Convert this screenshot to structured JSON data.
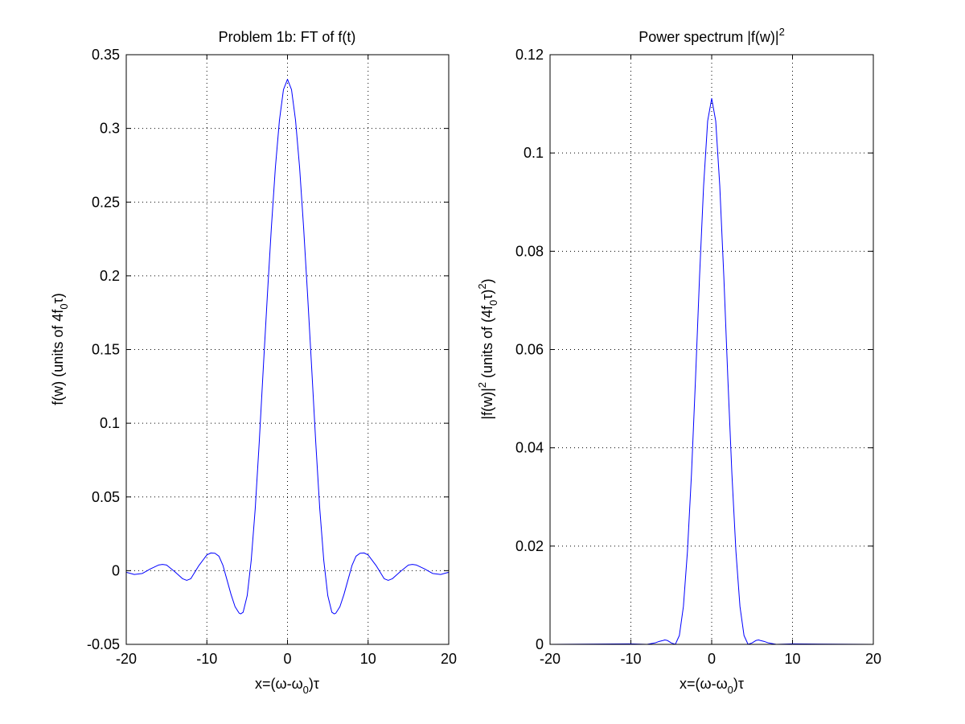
{
  "chart_data": [
    {
      "type": "line",
      "title": "Problem 1b: FT of f(t)",
      "xlabel": "x=(ω-ω0)τ",
      "ylabel": "f(w) (units of 4f0τ)",
      "xlim": [
        -20,
        20
      ],
      "ylim": [
        -0.05,
        0.35
      ],
      "xticks": [
        -20,
        -10,
        0,
        10,
        20
      ],
      "yticks": [
        -0.05,
        0,
        0.05,
        0.1,
        0.15,
        0.2,
        0.25,
        0.3,
        0.35
      ],
      "xtick_labels": [
        "-20",
        "-10",
        "0",
        "10",
        "20"
      ],
      "ytick_labels": [
        "-0.05",
        "0",
        "0.05",
        "0.1",
        "0.15",
        "0.2",
        "0.25",
        "0.3",
        "0.35"
      ],
      "grid": true,
      "series": [
        {
          "color": "#0000ff",
          "x": [
            -20,
            -19,
            -18,
            -17,
            -16,
            -15.5,
            -15,
            -14,
            -13,
            -12.5,
            -12,
            -11,
            -10,
            -9.5,
            -9,
            -8.5,
            -8,
            -7,
            -6.5,
            -6,
            -5.8,
            -5.5,
            -5,
            -4.5,
            -4,
            -3.5,
            -3,
            -2.5,
            -2,
            -1.5,
            -1,
            -0.5,
            0,
            0.5,
            1,
            1.5,
            2,
            2.5,
            3,
            3.5,
            4,
            4.5,
            5,
            5.5,
            5.8,
            6,
            6.5,
            7,
            8,
            8.5,
            9,
            9.5,
            10,
            11,
            12,
            12.5,
            13,
            14,
            15,
            15.5,
            16,
            17,
            18,
            19,
            20
          ],
          "y": [
            -0.0011,
            -0.0026,
            -0.0019,
            0.0012,
            0.0038,
            0.0042,
            0.0038,
            -0.0006,
            -0.0055,
            -0.0066,
            -0.0055,
            0.0034,
            0.0107,
            0.012,
            0.0118,
            0.0098,
            0.0035,
            -0.0162,
            -0.0245,
            -0.0288,
            -0.0293,
            -0.0282,
            -0.017,
            0.007,
            0.0422,
            0.0875,
            0.1376,
            0.1864,
            0.2327,
            0.2736,
            0.3055,
            0.3263,
            0.3333,
            0.3263,
            0.3055,
            0.2736,
            0.2327,
            0.1864,
            0.1376,
            0.0875,
            0.0422,
            0.007,
            -0.017,
            -0.0282,
            -0.0293,
            -0.0288,
            -0.0245,
            -0.0162,
            0.0035,
            0.0098,
            0.0118,
            0.012,
            0.0107,
            0.0034,
            -0.0055,
            -0.0066,
            -0.0055,
            -0.0006,
            0.0038,
            0.0042,
            0.0038,
            0.0012,
            -0.0019,
            -0.0026,
            -0.0011
          ]
        }
      ]
    },
    {
      "type": "line",
      "title": "Power spectrum |f(w)|2",
      "xlabel": "x=(ω-ω0)τ",
      "ylabel": "|f(w)|2 (units of (4f0τ)2)",
      "xlim": [
        -20,
        20
      ],
      "ylim": [
        0,
        0.12
      ],
      "xticks": [
        -20,
        -10,
        0,
        10,
        20
      ],
      "yticks": [
        0,
        0.02,
        0.04,
        0.06,
        0.08,
        0.1,
        0.12
      ],
      "xtick_labels": [
        "-20",
        "-10",
        "0",
        "10",
        "20"
      ],
      "ytick_labels": [
        "0",
        "0.02",
        "0.04",
        "0.06",
        "0.08",
        "0.1",
        "0.12"
      ],
      "grid": true,
      "series": [
        {
          "color": "#0000ff",
          "x": [
            -20,
            -10,
            -8,
            -7,
            -6.5,
            -6,
            -5.8,
            -5.5,
            -5,
            -4.5,
            -4,
            -3.5,
            -3,
            -2.5,
            -2,
            -1.5,
            -1,
            -0.5,
            0,
            0.5,
            1,
            1.5,
            2,
            2.5,
            3,
            3.5,
            4,
            4.5,
            5,
            5.5,
            5.8,
            6,
            6.5,
            7,
            8,
            10,
            20
          ],
          "y": [
            0,
            0.0001,
            0,
            0.0003,
            0.0006,
            0.0008,
            0.0009,
            0.0008,
            0.0003,
            0,
            0.0018,
            0.0077,
            0.0189,
            0.0347,
            0.0541,
            0.0749,
            0.0933,
            0.1065,
            0.1111,
            0.1065,
            0.0933,
            0.0749,
            0.0541,
            0.0347,
            0.0189,
            0.0077,
            0.0018,
            0,
            0.0003,
            0.0008,
            0.0009,
            0.0008,
            0.0006,
            0.0003,
            0,
            0.0001,
            0
          ]
        }
      ]
    }
  ],
  "labels": {
    "left": {
      "title": "Problem 1b: FT of f(t)",
      "xlabel_prefix": "x=(ω-ω",
      "xlabel_sub": "0",
      "xlabel_suffix": ")τ",
      "ylabel_prefix": "f(w) (units of 4f",
      "ylabel_sub": "0",
      "ylabel_suffix": "τ)"
    },
    "right": {
      "title_main": "Power spectrum |f(w)|",
      "title_sup": "2",
      "xlabel_prefix": "x=(ω-ω",
      "xlabel_sub": "0",
      "xlabel_suffix": ")τ",
      "ylabel_part1": "|f(w)|",
      "ylabel_sup1": "2",
      "ylabel_part2": " (units of (4f",
      "ylabel_sub": "0",
      "ylabel_part3": "τ)",
      "ylabel_sup2": "2",
      "ylabel_part4": ")"
    }
  }
}
